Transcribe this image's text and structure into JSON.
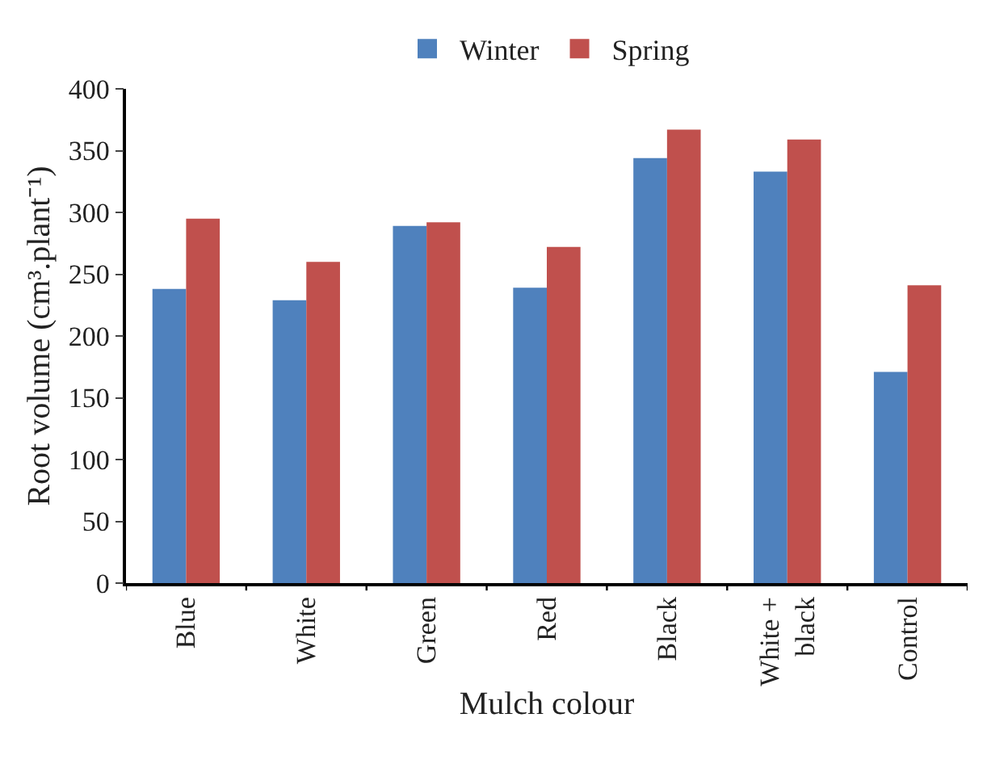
{
  "chart_data": {
    "type": "bar",
    "xlabel": "Mulch colour",
    "ylabel": "Root volume (cm³.plant⁻¹)",
    "categories": [
      "Blue",
      "White",
      "Green",
      "Red",
      "Black",
      "White + black",
      "Control"
    ],
    "series": [
      {
        "name": "Winter",
        "color": "#4f81bd",
        "values": [
          238,
          229,
          289,
          239,
          344,
          333,
          171
        ]
      },
      {
        "name": "Spring",
        "color": "#c0504d",
        "values": [
          295,
          260,
          292,
          272,
          367,
          359,
          241
        ]
      }
    ],
    "ylim": [
      0,
      400
    ],
    "yticks": [
      0,
      50,
      100,
      150,
      200,
      250,
      300,
      350,
      400
    ],
    "legend": "top"
  }
}
